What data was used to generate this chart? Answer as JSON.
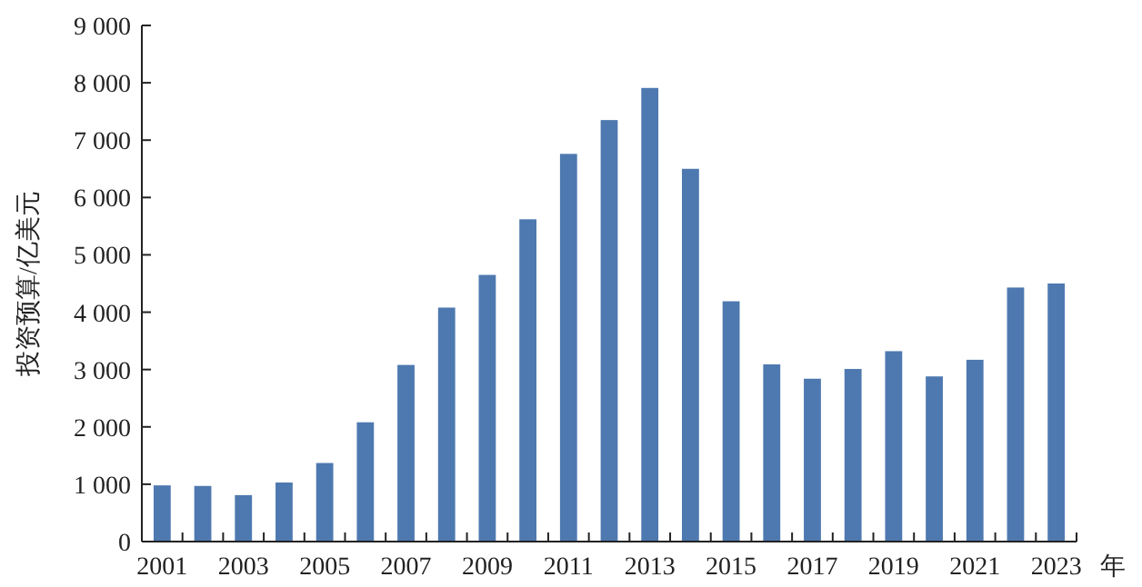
{
  "chart_data": {
    "type": "bar",
    "ylabel": "投资预算/亿美元",
    "xlabel": "年",
    "categories": [
      "2001",
      null,
      "2003",
      null,
      "2005",
      null,
      "2007",
      null,
      "2009",
      null,
      "2011",
      null,
      "2013",
      null,
      "2015",
      null,
      "2017",
      null,
      "2019",
      null,
      "2021",
      null,
      "2023"
    ],
    "values": [
      980,
      970,
      810,
      1030,
      1370,
      2080,
      3080,
      4080,
      4650,
      5620,
      6760,
      7350,
      7910,
      6500,
      4190,
      3090,
      2840,
      3010,
      3320,
      2880,
      3170,
      4430,
      4500
    ],
    "color": "#4e79b0",
    "ylim": [
      0,
      9000
    ],
    "yticks": [
      0,
      {
        "value": 1000,
        "label": "1 000"
      },
      {
        "value": 2000,
        "label": "2 000"
      },
      {
        "value": 3000,
        "label": "3 000"
      },
      {
        "value": 4000,
        "label": "4 000"
      },
      {
        "value": 5000,
        "label": "5 000"
      },
      {
        "value": 6000,
        "label": "6 000"
      },
      {
        "value": 7000,
        "label": "7 000"
      },
      {
        "value": 8000,
        "label": "8 000"
      },
      {
        "value": 9000,
        "label": "9 000"
      }
    ]
  }
}
